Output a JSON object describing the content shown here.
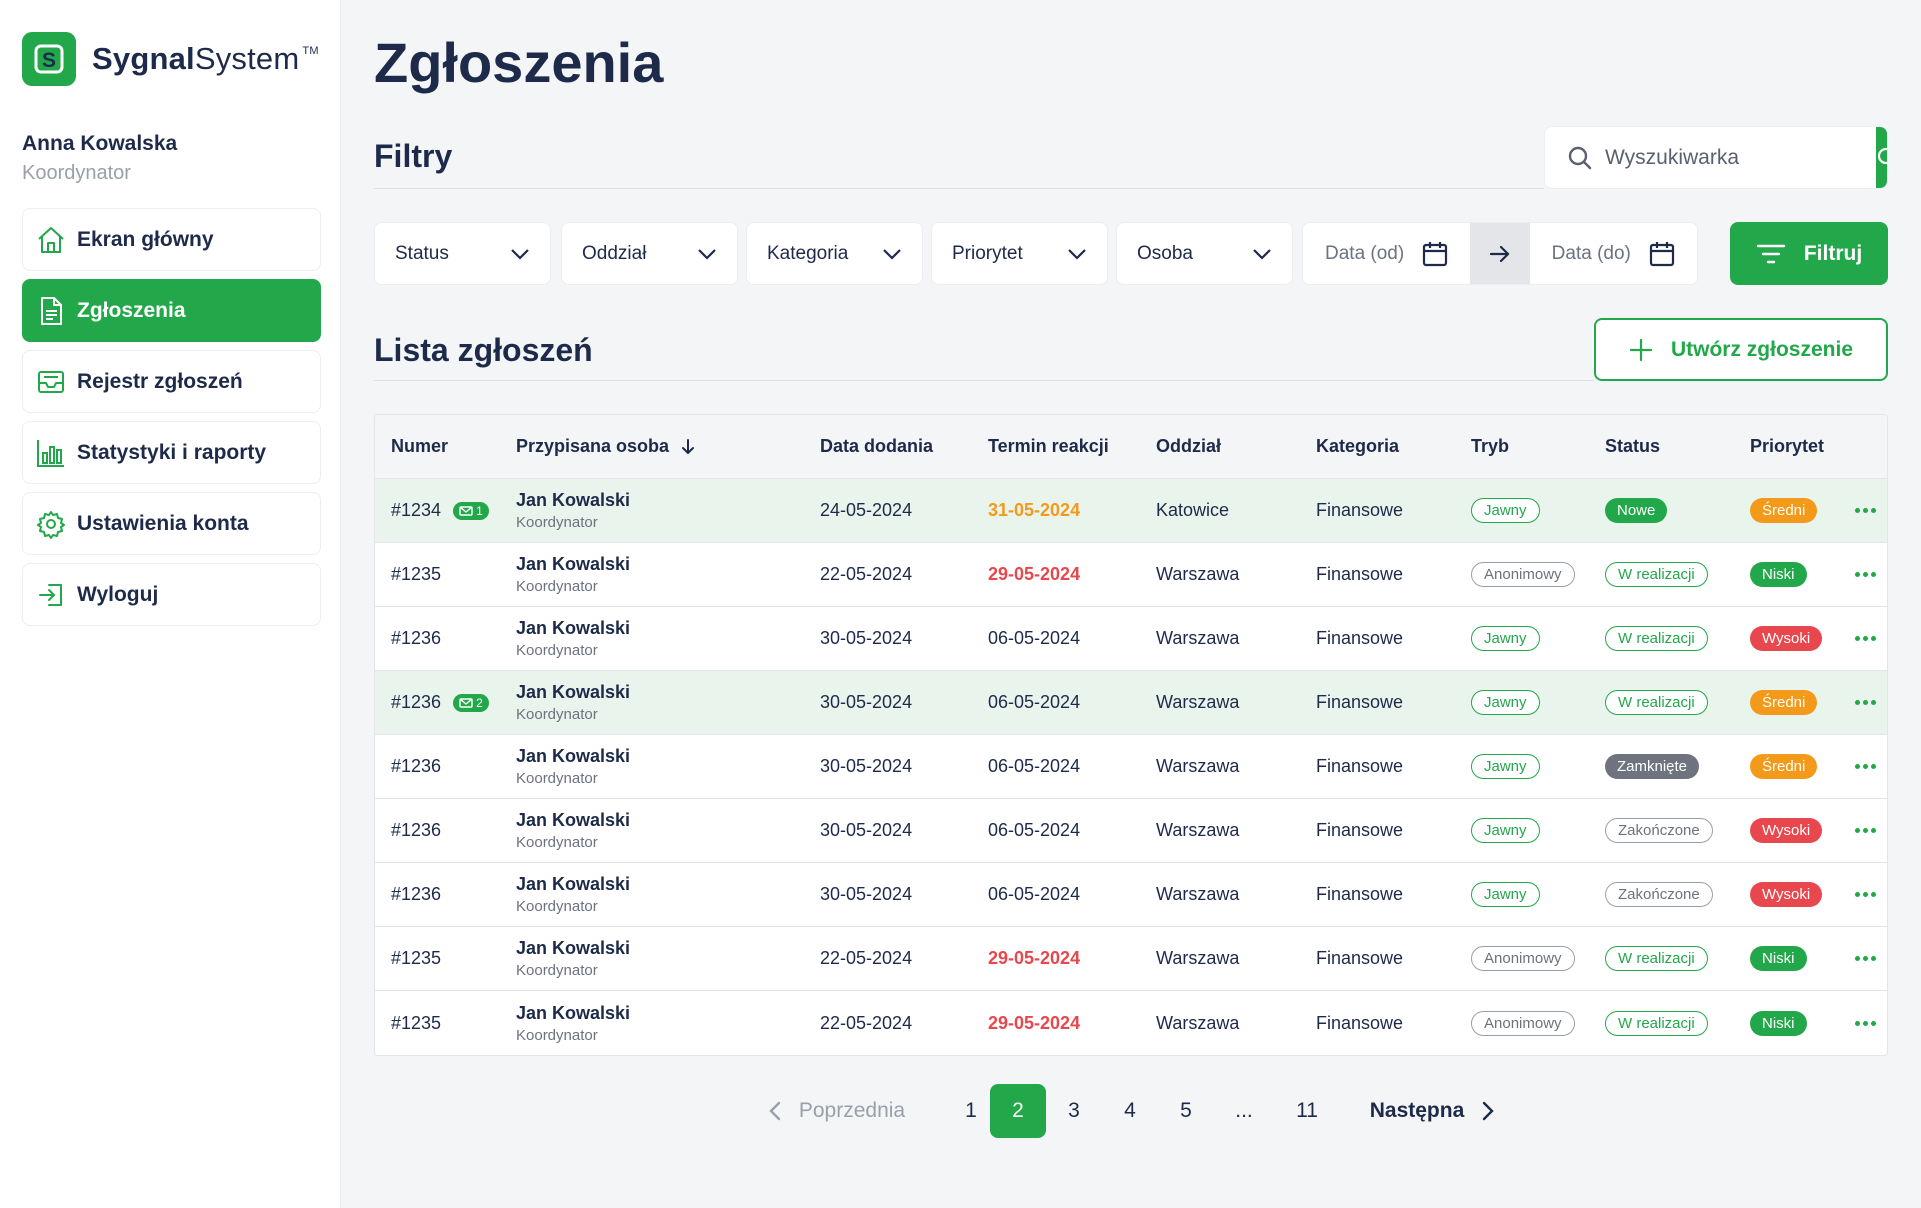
{
  "brand": {
    "name_bold": "Sygnal",
    "name_regular": "System",
    "tm": "TM",
    "badge_letter": "S"
  },
  "user": {
    "name": "Anna Kowalska",
    "role": "Koordynator"
  },
  "nav": [
    {
      "label": "Ekran główny",
      "icon": "home-icon"
    },
    {
      "label": "Zgłoszenia",
      "icon": "document-icon",
      "active": true
    },
    {
      "label": "Rejestr zgłoszeń",
      "icon": "inbox-icon"
    },
    {
      "label": "Statystyki i raporty",
      "icon": "bar-chart-icon"
    },
    {
      "label": "Ustawienia konta",
      "icon": "gear-icon"
    },
    {
      "label": "Wyloguj",
      "icon": "logout-icon"
    }
  ],
  "page_title": "Zgłoszenia",
  "filters_title": "Filtry",
  "search": {
    "placeholder": "Wyszukiwarka"
  },
  "filters": {
    "status": "Status",
    "branch": "Oddział",
    "category": "Kategoria",
    "priority": "Priorytet",
    "person": "Osoba",
    "date_from": "Data (od)",
    "date_to": "Data (do)",
    "apply_label": "Filtruj"
  },
  "list_title": "Lista zgłoszeń",
  "create_label": "Utwórz zgłoszenie",
  "columns": {
    "number": "Numer",
    "assigned": "Przypisana osoba",
    "added": "Data dodania",
    "deadline": "Termin reakcji",
    "branch": "Oddział",
    "category": "Kategoria",
    "mode": "Tryb",
    "status": "Status",
    "priority": "Priorytet"
  },
  "rows": [
    {
      "number": "#1234",
      "messages": "1",
      "person": "Jan Kowalski",
      "role": "Koordynator",
      "added": "24-05-2024",
      "deadline": "31-05-2024",
      "deadline_state": "warning",
      "branch": "Katowice",
      "category": "Finansowe",
      "mode": "Jawny",
      "status": "Nowe",
      "priority": "Średni",
      "highlighted": true
    },
    {
      "number": "#1235",
      "messages": "",
      "person": "Jan Kowalski",
      "role": "Koordynator",
      "added": "22-05-2024",
      "deadline": "29-05-2024",
      "deadline_state": "overdue",
      "branch": "Warszawa",
      "category": "Finansowe",
      "mode": "Anonimowy",
      "status": "W realizacji",
      "priority": "Niski",
      "highlighted": false
    },
    {
      "number": "#1236",
      "messages": "",
      "person": "Jan Kowalski",
      "role": "Koordynator",
      "added": "30-05-2024",
      "deadline": "06-05-2024",
      "deadline_state": "normal",
      "branch": "Warszawa",
      "category": "Finansowe",
      "mode": "Jawny",
      "status": "W realizacji",
      "priority": "Wysoki",
      "highlighted": false
    },
    {
      "number": "#1236",
      "messages": "2",
      "person": "Jan Kowalski",
      "role": "Koordynator",
      "added": "30-05-2024",
      "deadline": "06-05-2024",
      "deadline_state": "normal",
      "branch": "Warszawa",
      "category": "Finansowe",
      "mode": "Jawny",
      "status": "W realizacji",
      "priority": "Średni",
      "highlighted": true
    },
    {
      "number": "#1236",
      "messages": "",
      "person": "Jan Kowalski",
      "role": "Koordynator",
      "added": "30-05-2024",
      "deadline": "06-05-2024",
      "deadline_state": "normal",
      "branch": "Warszawa",
      "category": "Finansowe",
      "mode": "Jawny",
      "status": "Zamknięte",
      "priority": "Średni",
      "highlighted": false
    },
    {
      "number": "#1236",
      "messages": "",
      "person": "Jan Kowalski",
      "role": "Koordynator",
      "added": "30-05-2024",
      "deadline": "06-05-2024",
      "deadline_state": "normal",
      "branch": "Warszawa",
      "category": "Finansowe",
      "mode": "Jawny",
      "status": "Zakończone",
      "priority": "Wysoki",
      "highlighted": false
    },
    {
      "number": "#1236",
      "messages": "",
      "person": "Jan Kowalski",
      "role": "Koordynator",
      "added": "30-05-2024",
      "deadline": "06-05-2024",
      "deadline_state": "normal",
      "branch": "Warszawa",
      "category": "Finansowe",
      "mode": "Jawny",
      "status": "Zakończone",
      "priority": "Wysoki",
      "highlighted": false
    },
    {
      "number": "#1235",
      "messages": "",
      "person": "Jan Kowalski",
      "role": "Koordynator",
      "added": "22-05-2024",
      "deadline": "29-05-2024",
      "deadline_state": "overdue",
      "branch": "Warszawa",
      "category": "Finansowe",
      "mode": "Anonimowy",
      "status": "W realizacji",
      "priority": "Niski",
      "highlighted": false
    },
    {
      "number": "#1235",
      "messages": "",
      "person": "Jan Kowalski",
      "role": "Koordynator",
      "added": "22-05-2024",
      "deadline": "29-05-2024",
      "deadline_state": "overdue",
      "branch": "Warszawa",
      "category": "Finansowe",
      "mode": "Anonimowy",
      "status": "W realizacji",
      "priority": "Niski",
      "highlighted": false
    }
  ],
  "pagination": {
    "prev_label": "Poprzednia",
    "next_label": "Następna",
    "pages": [
      "1",
      "2",
      "3",
      "4",
      "5",
      "...",
      "11"
    ],
    "current": "2"
  },
  "colors": {
    "accent": "#22a84a",
    "text_dark": "#1e2a4a",
    "warning": "#f39a1a",
    "danger": "#e8474d",
    "muted": "#6f7380",
    "highlight_row": "#e9f5ec"
  }
}
